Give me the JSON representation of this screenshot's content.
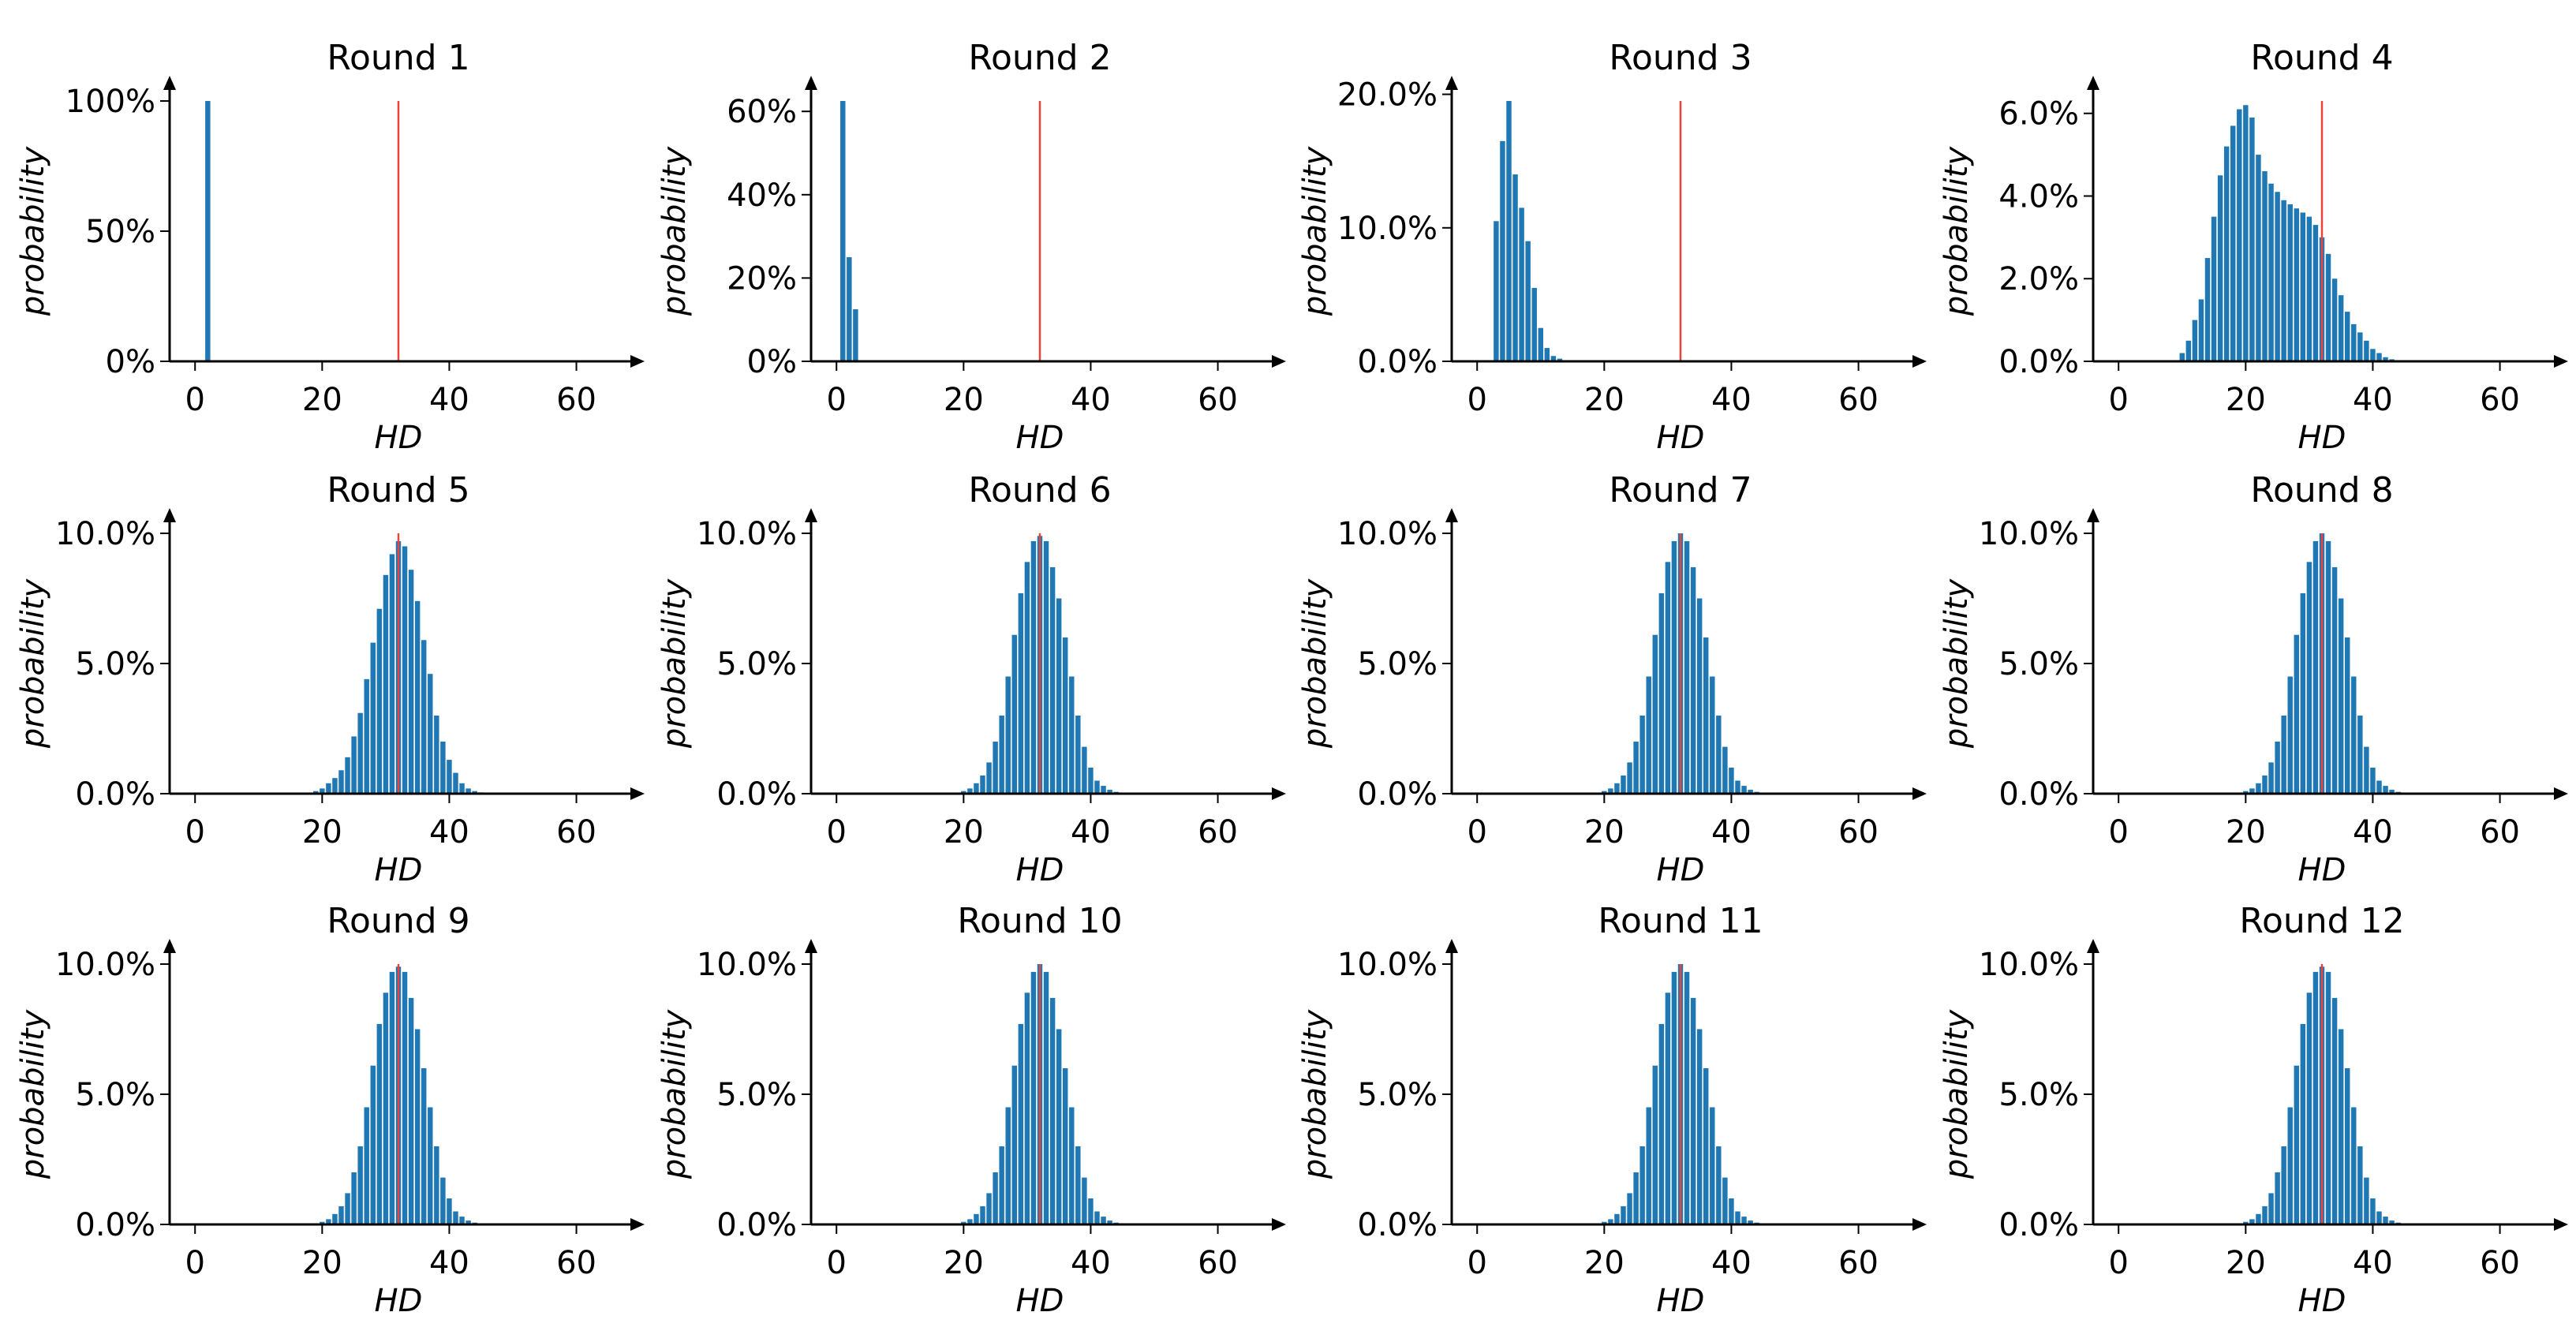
{
  "figure": {
    "bar_color": "#1f77b4",
    "reference_color": "#e8443a",
    "axis_color": "#000000"
  },
  "chart_data": [
    {
      "type": "bar",
      "title": "Round 1",
      "xlabel": "HD",
      "ylabel": "probability",
      "xlim": [
        -4,
        68
      ],
      "xticks": [
        "0",
        "20",
        "40",
        "60"
      ],
      "xtick_values": [
        0,
        20,
        40,
        60
      ],
      "ylim": [
        0,
        1.0
      ],
      "yticks": [
        "0%",
        "50%",
        "100%"
      ],
      "ytick_values": [
        0,
        0.5,
        1.0
      ],
      "reference_line_x": 32,
      "x": [
        2
      ],
      "values": [
        1.0
      ]
    },
    {
      "type": "bar",
      "title": "Round 2",
      "xlabel": "HD",
      "ylabel": "probability",
      "xlim": [
        -4,
        68
      ],
      "xticks": [
        "0",
        "20",
        "40",
        "60"
      ],
      "xtick_values": [
        0,
        20,
        40,
        60
      ],
      "ylim": [
        0,
        0.625
      ],
      "yticks": [
        "0%",
        "20%",
        "40%",
        "60%"
      ],
      "ytick_values": [
        0,
        0.2,
        0.4,
        0.6
      ],
      "reference_line_x": 32,
      "x": [
        0,
        1,
        2,
        3
      ],
      "values": [
        0.0,
        0.625,
        0.25,
        0.125
      ]
    },
    {
      "type": "bar",
      "title": "Round 3",
      "xlabel": "HD",
      "ylabel": "probability",
      "xlim": [
        -4,
        68
      ],
      "xticks": [
        "0",
        "20",
        "40",
        "60"
      ],
      "xtick_values": [
        0,
        20,
        40,
        60
      ],
      "ylim": [
        0,
        0.195
      ],
      "yticks": [
        "0.0%",
        "10.0%",
        "20.0%"
      ],
      "ytick_values": [
        0,
        0.1,
        0.2
      ],
      "reference_line_x": 32,
      "x": [
        3,
        4,
        5,
        6,
        7,
        8,
        9,
        10,
        11,
        12,
        13
      ],
      "values": [
        0.105,
        0.165,
        0.195,
        0.14,
        0.115,
        0.09,
        0.055,
        0.025,
        0.01,
        0.004,
        0.002
      ]
    },
    {
      "type": "bar",
      "title": "Round 4",
      "xlabel": "HD",
      "ylabel": "probability",
      "xlim": [
        -4,
        68
      ],
      "xticks": [
        "0",
        "20",
        "40",
        "60"
      ],
      "xtick_values": [
        0,
        20,
        40,
        60
      ],
      "ylim": [
        0,
        0.063
      ],
      "yticks": [
        "0.0%",
        "2.0%",
        "4.0%",
        "6.0%"
      ],
      "ytick_values": [
        0,
        0.02,
        0.04,
        0.06
      ],
      "reference_line_x": 32,
      "x": [
        10,
        11,
        12,
        13,
        14,
        15,
        16,
        17,
        18,
        19,
        20,
        21,
        22,
        23,
        24,
        25,
        26,
        27,
        28,
        29,
        30,
        31,
        32,
        33,
        34,
        35,
        36,
        37,
        38,
        39,
        40,
        41,
        42,
        43,
        44
      ],
      "values": [
        0.002,
        0.005,
        0.01,
        0.015,
        0.025,
        0.035,
        0.045,
        0.052,
        0.057,
        0.061,
        0.062,
        0.059,
        0.05,
        0.046,
        0.043,
        0.041,
        0.039,
        0.038,
        0.037,
        0.036,
        0.035,
        0.033,
        0.03,
        0.026,
        0.02,
        0.016,
        0.012,
        0.009,
        0.007,
        0.005,
        0.003,
        0.002,
        0.001,
        0.0005,
        0.0002
      ]
    },
    {
      "type": "bar",
      "title": "Round 5",
      "xlabel": "HD",
      "ylabel": "probability",
      "xlim": [
        -4,
        68
      ],
      "xticks": [
        "0",
        "20",
        "40",
        "60"
      ],
      "xtick_values": [
        0,
        20,
        40,
        60
      ],
      "ylim": [
        0,
        0.1
      ],
      "yticks": [
        "0.0%",
        "5.0%",
        "10.0%"
      ],
      "ytick_values": [
        0,
        0.05,
        0.1
      ],
      "reference_line_x": 32,
      "x": [
        19,
        20,
        21,
        22,
        23,
        24,
        25,
        26,
        27,
        28,
        29,
        30,
        31,
        32,
        33,
        34,
        35,
        36,
        37,
        38,
        39,
        40,
        41,
        42,
        43,
        44,
        45
      ],
      "values": [
        0.001,
        0.002,
        0.004,
        0.006,
        0.009,
        0.014,
        0.022,
        0.031,
        0.044,
        0.058,
        0.071,
        0.084,
        0.092,
        0.097,
        0.095,
        0.086,
        0.074,
        0.059,
        0.046,
        0.03,
        0.02,
        0.013,
        0.008,
        0.004,
        0.002,
        0.001,
        0.0005
      ]
    },
    {
      "type": "bar",
      "title": "Round 6",
      "xlabel": "HD",
      "ylabel": "probability",
      "xlim": [
        -4,
        68
      ],
      "xticks": [
        "0",
        "20",
        "40",
        "60"
      ],
      "xtick_values": [
        0,
        20,
        40,
        60
      ],
      "ylim": [
        0,
        0.1
      ],
      "yticks": [
        "0.0%",
        "5.0%",
        "10.0%"
      ],
      "ytick_values": [
        0,
        0.05,
        0.1
      ],
      "reference_line_x": 32,
      "x": [
        20,
        21,
        22,
        23,
        24,
        25,
        26,
        27,
        28,
        29,
        30,
        31,
        32,
        33,
        34,
        35,
        36,
        37,
        38,
        39,
        40,
        41,
        42,
        43,
        44,
        45
      ],
      "values": [
        0.001,
        0.002,
        0.004,
        0.007,
        0.012,
        0.02,
        0.03,
        0.045,
        0.061,
        0.077,
        0.089,
        0.097,
        0.099,
        0.097,
        0.087,
        0.075,
        0.06,
        0.045,
        0.03,
        0.018,
        0.01,
        0.005,
        0.003,
        0.0015,
        0.0007,
        0.0003
      ]
    },
    {
      "type": "bar",
      "title": "Round 7",
      "xlabel": "HD",
      "ylabel": "probability",
      "xlim": [
        -4,
        68
      ],
      "xticks": [
        "0",
        "20",
        "40",
        "60"
      ],
      "xtick_values": [
        0,
        20,
        40,
        60
      ],
      "ylim": [
        0,
        0.1
      ],
      "yticks": [
        "0.0%",
        "5.0%",
        "10.0%"
      ],
      "ytick_values": [
        0,
        0.05,
        0.1
      ],
      "reference_line_x": 32,
      "x": [
        20,
        21,
        22,
        23,
        24,
        25,
        26,
        27,
        28,
        29,
        30,
        31,
        32,
        33,
        34,
        35,
        36,
        37,
        38,
        39,
        40,
        41,
        42,
        43,
        44,
        45
      ],
      "values": [
        0.001,
        0.002,
        0.004,
        0.007,
        0.012,
        0.02,
        0.03,
        0.045,
        0.061,
        0.077,
        0.089,
        0.097,
        0.1,
        0.097,
        0.087,
        0.075,
        0.06,
        0.045,
        0.03,
        0.018,
        0.01,
        0.005,
        0.003,
        0.0015,
        0.0007,
        0.0003
      ]
    },
    {
      "type": "bar",
      "title": "Round 8",
      "xlabel": "HD",
      "ylabel": "probability",
      "xlim": [
        -4,
        68
      ],
      "xticks": [
        "0",
        "20",
        "40",
        "60"
      ],
      "xtick_values": [
        0,
        20,
        40,
        60
      ],
      "ylim": [
        0,
        0.1
      ],
      "yticks": [
        "0.0%",
        "5.0%",
        "10.0%"
      ],
      "ytick_values": [
        0,
        0.05,
        0.1
      ],
      "reference_line_x": 32,
      "x": [
        20,
        21,
        22,
        23,
        24,
        25,
        26,
        27,
        28,
        29,
        30,
        31,
        32,
        33,
        34,
        35,
        36,
        37,
        38,
        39,
        40,
        41,
        42,
        43,
        44,
        45
      ],
      "values": [
        0.001,
        0.002,
        0.004,
        0.007,
        0.012,
        0.02,
        0.03,
        0.045,
        0.061,
        0.077,
        0.089,
        0.097,
        0.1,
        0.097,
        0.087,
        0.075,
        0.06,
        0.045,
        0.03,
        0.018,
        0.01,
        0.005,
        0.003,
        0.0015,
        0.0007,
        0.0003
      ]
    },
    {
      "type": "bar",
      "title": "Round 9",
      "xlabel": "HD",
      "ylabel": "probability",
      "xlim": [
        -4,
        68
      ],
      "xticks": [
        "0",
        "20",
        "40",
        "60"
      ],
      "xtick_values": [
        0,
        20,
        40,
        60
      ],
      "ylim": [
        0,
        0.1
      ],
      "yticks": [
        "0.0%",
        "5.0%",
        "10.0%"
      ],
      "ytick_values": [
        0,
        0.05,
        0.1
      ],
      "reference_line_x": 32,
      "x": [
        20,
        21,
        22,
        23,
        24,
        25,
        26,
        27,
        28,
        29,
        30,
        31,
        32,
        33,
        34,
        35,
        36,
        37,
        38,
        39,
        40,
        41,
        42,
        43,
        44,
        45
      ],
      "values": [
        0.001,
        0.002,
        0.004,
        0.007,
        0.012,
        0.02,
        0.03,
        0.045,
        0.061,
        0.077,
        0.089,
        0.097,
        0.099,
        0.097,
        0.087,
        0.075,
        0.06,
        0.045,
        0.03,
        0.018,
        0.01,
        0.005,
        0.003,
        0.0015,
        0.0007,
        0.0003
      ]
    },
    {
      "type": "bar",
      "title": "Round 10",
      "xlabel": "HD",
      "ylabel": "probability",
      "xlim": [
        -4,
        68
      ],
      "xticks": [
        "0",
        "20",
        "40",
        "60"
      ],
      "xtick_values": [
        0,
        20,
        40,
        60
      ],
      "ylim": [
        0,
        0.1
      ],
      "yticks": [
        "0.0%",
        "5.0%",
        "10.0%"
      ],
      "ytick_values": [
        0,
        0.05,
        0.1
      ],
      "reference_line_x": 32,
      "x": [
        20,
        21,
        22,
        23,
        24,
        25,
        26,
        27,
        28,
        29,
        30,
        31,
        32,
        33,
        34,
        35,
        36,
        37,
        38,
        39,
        40,
        41,
        42,
        43,
        44,
        45
      ],
      "values": [
        0.001,
        0.002,
        0.004,
        0.007,
        0.012,
        0.02,
        0.03,
        0.045,
        0.061,
        0.077,
        0.089,
        0.097,
        0.1,
        0.097,
        0.087,
        0.075,
        0.06,
        0.045,
        0.03,
        0.018,
        0.01,
        0.005,
        0.003,
        0.0015,
        0.0007,
        0.0003
      ]
    },
    {
      "type": "bar",
      "title": "Round 11",
      "xlabel": "HD",
      "ylabel": "probability",
      "xlim": [
        -4,
        68
      ],
      "xticks": [
        "0",
        "20",
        "40",
        "60"
      ],
      "xtick_values": [
        0,
        20,
        40,
        60
      ],
      "ylim": [
        0,
        0.1
      ],
      "yticks": [
        "0.0%",
        "5.0%",
        "10.0%"
      ],
      "ytick_values": [
        0,
        0.05,
        0.1
      ],
      "reference_line_x": 32,
      "x": [
        20,
        21,
        22,
        23,
        24,
        25,
        26,
        27,
        28,
        29,
        30,
        31,
        32,
        33,
        34,
        35,
        36,
        37,
        38,
        39,
        40,
        41,
        42,
        43,
        44,
        45
      ],
      "values": [
        0.001,
        0.002,
        0.004,
        0.007,
        0.012,
        0.02,
        0.03,
        0.045,
        0.061,
        0.077,
        0.089,
        0.097,
        0.1,
        0.097,
        0.087,
        0.075,
        0.06,
        0.045,
        0.03,
        0.018,
        0.01,
        0.005,
        0.003,
        0.0015,
        0.0007,
        0.0003
      ]
    },
    {
      "type": "bar",
      "title": "Round 12",
      "xlabel": "HD",
      "ylabel": "probability",
      "xlim": [
        -4,
        68
      ],
      "xticks": [
        "0",
        "20",
        "40",
        "60"
      ],
      "xtick_values": [
        0,
        20,
        40,
        60
      ],
      "ylim": [
        0,
        0.1
      ],
      "yticks": [
        "0.0%",
        "5.0%",
        "10.0%"
      ],
      "ytick_values": [
        0,
        0.05,
        0.1
      ],
      "reference_line_x": 32,
      "x": [
        20,
        21,
        22,
        23,
        24,
        25,
        26,
        27,
        28,
        29,
        30,
        31,
        32,
        33,
        34,
        35,
        36,
        37,
        38,
        39,
        40,
        41,
        42,
        43,
        44,
        45
      ],
      "values": [
        0.001,
        0.002,
        0.004,
        0.007,
        0.012,
        0.02,
        0.03,
        0.045,
        0.061,
        0.077,
        0.089,
        0.097,
        0.099,
        0.097,
        0.087,
        0.075,
        0.06,
        0.045,
        0.03,
        0.018,
        0.01,
        0.005,
        0.003,
        0.0015,
        0.0007,
        0.0003
      ]
    }
  ]
}
